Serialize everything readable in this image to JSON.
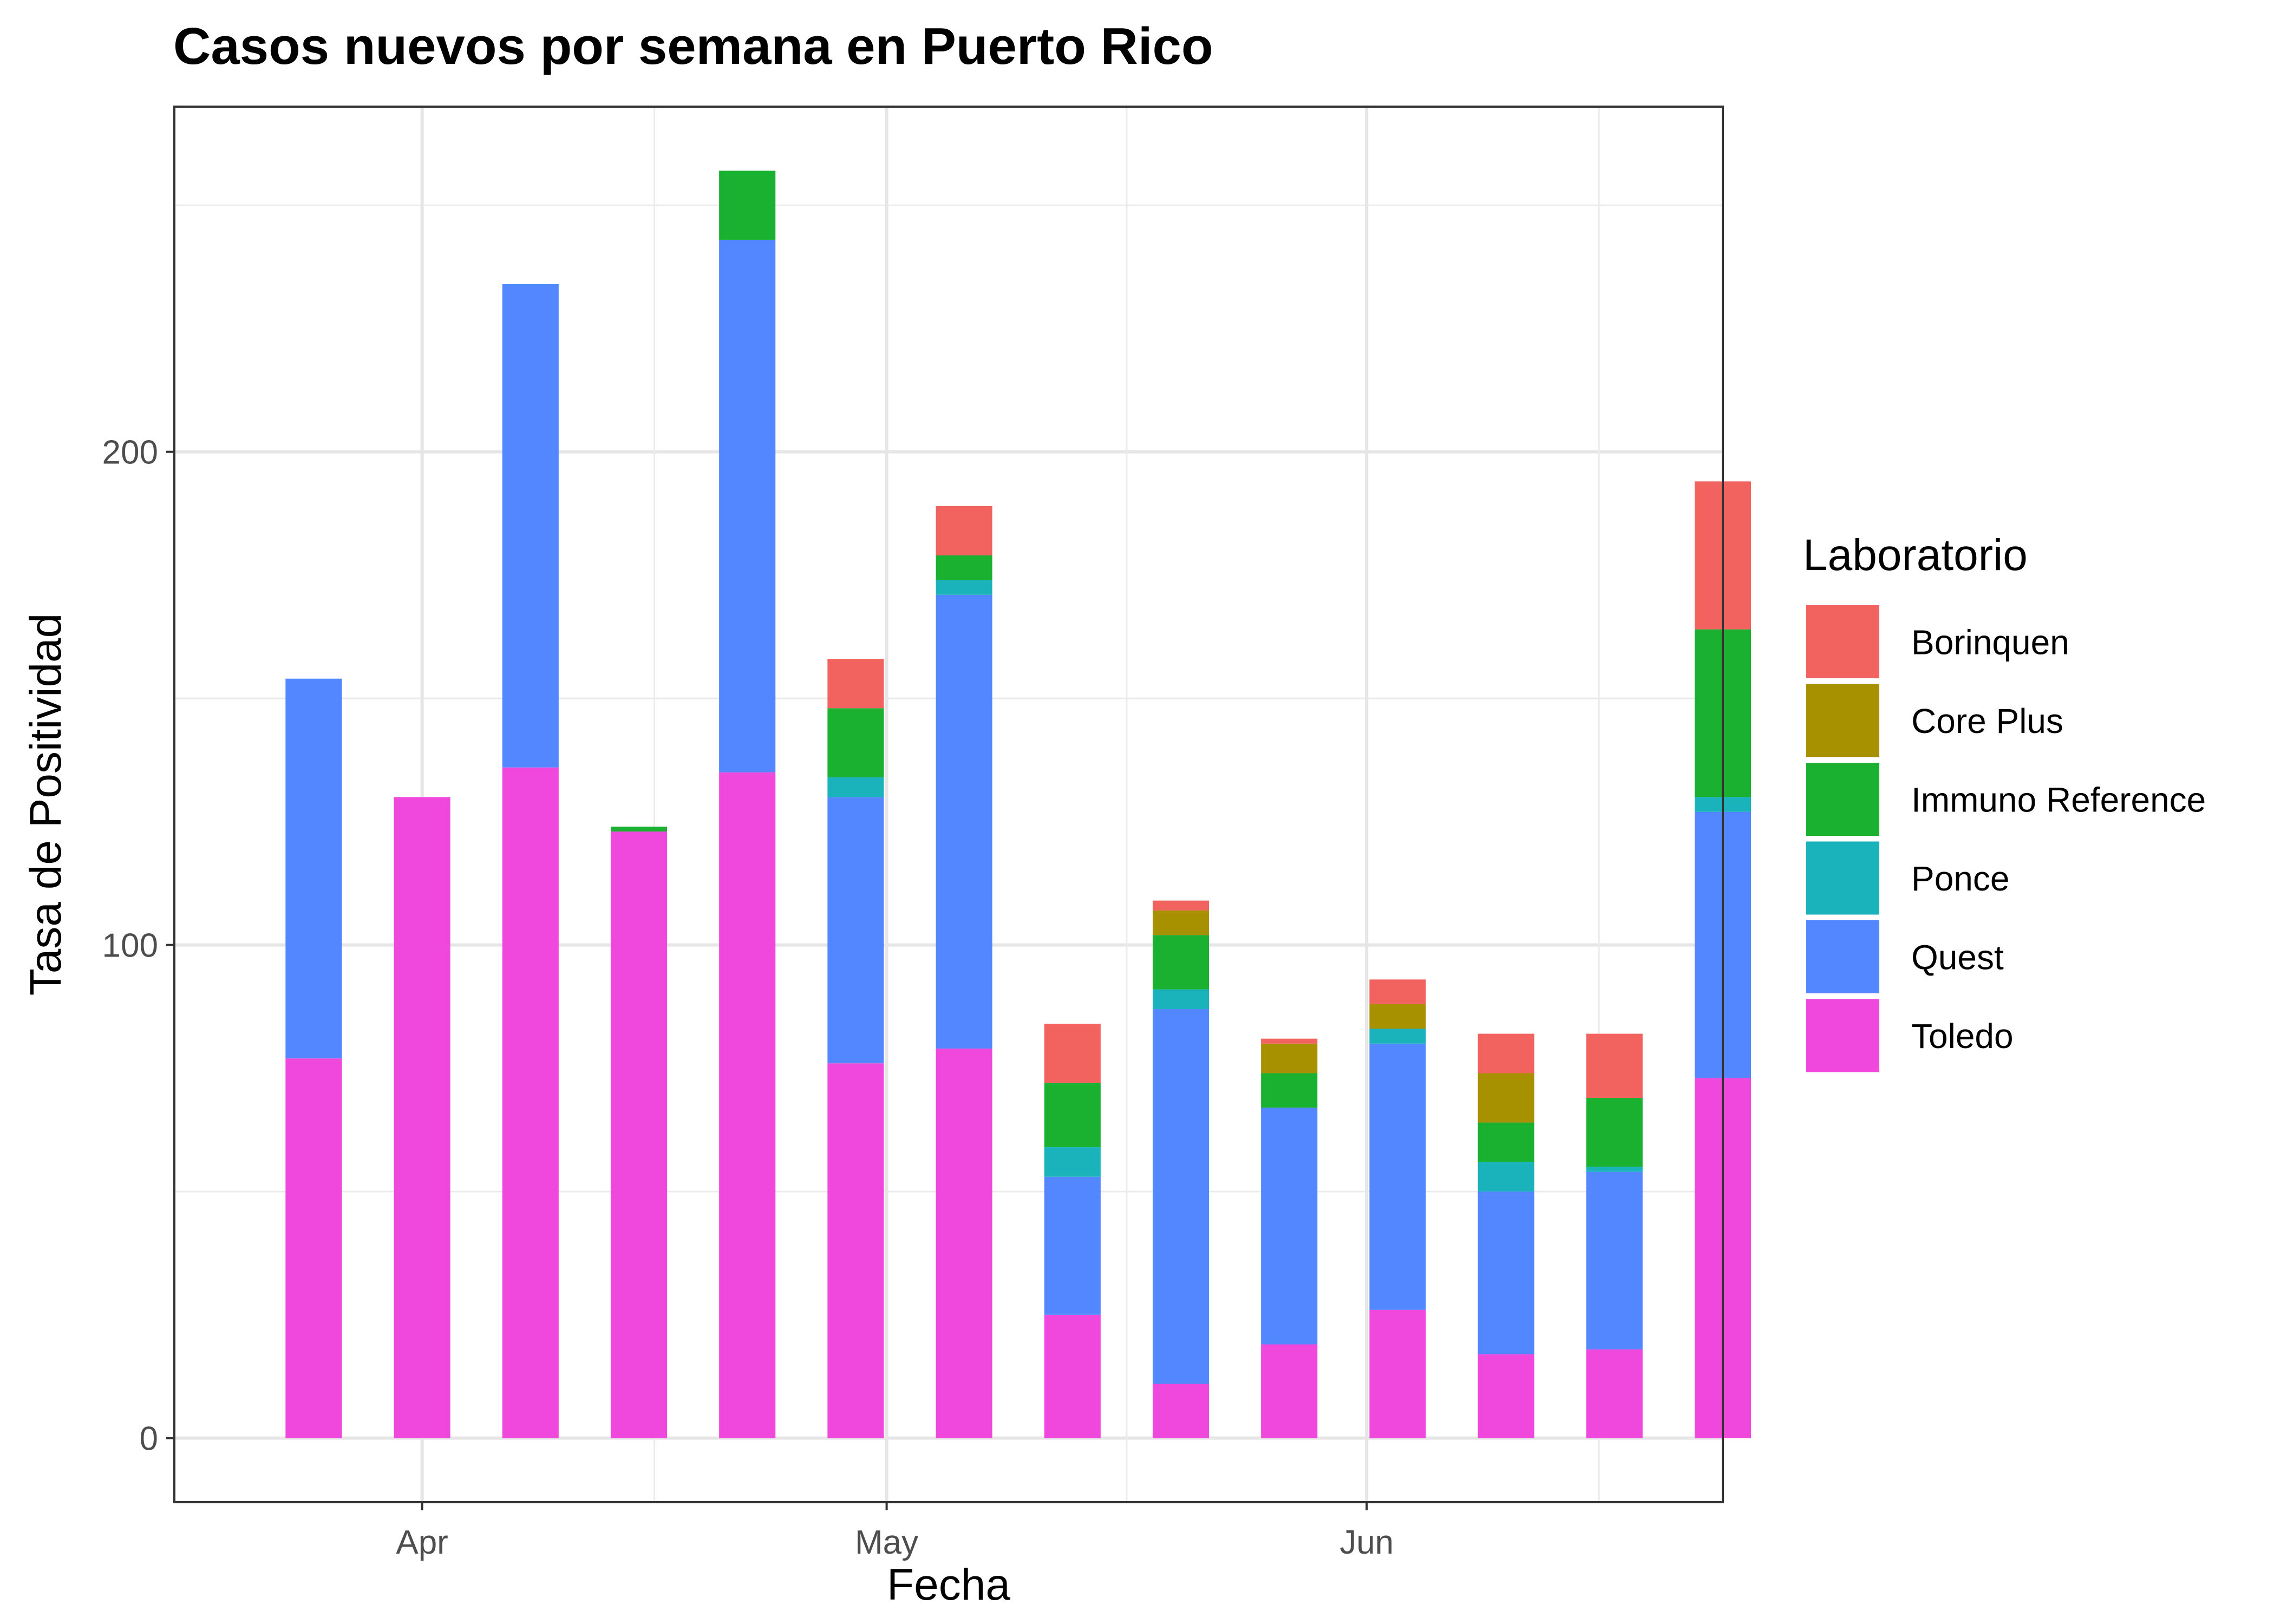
{
  "chart_data": {
    "type": "bar",
    "stacked": true,
    "title": "Casos nuevos por semana en Puerto Rico",
    "xlabel": "Fecha",
    "ylabel": "Tasa de Positividad",
    "x_ticks": [
      {
        "label": "Apr",
        "date": "2020-04-01"
      },
      {
        "label": "May",
        "date": "2020-05-01"
      },
      {
        "label": "Jun",
        "date": "2020-06-01"
      }
    ],
    "y_ticks": [
      0,
      100,
      200
    ],
    "ylim": [
      -13,
      270
    ],
    "grid": true,
    "legend_position": "right",
    "legend_title": "Laboratorio",
    "categories": [
      "2020-03-22",
      "2020-03-29",
      "2020-04-05",
      "2020-04-12",
      "2020-04-19",
      "2020-04-26",
      "2020-05-03",
      "2020-05-10",
      "2020-05-17",
      "2020-05-24",
      "2020-05-31",
      "2020-06-07",
      "2020-06-14",
      "2020-06-21"
    ],
    "series": [
      {
        "name": "Toledo",
        "color": "#F047DC",
        "values": [
          77,
          130,
          136,
          123,
          135,
          76,
          79,
          25,
          11,
          19,
          26,
          17,
          18,
          73
        ]
      },
      {
        "name": "Quest",
        "color": "#5287FF",
        "values": [
          77,
          0,
          98,
          0,
          108,
          54,
          92,
          28,
          76,
          48,
          54,
          33,
          36,
          54
        ]
      },
      {
        "name": "Ponce",
        "color": "#1BB3BB",
        "values": [
          0,
          0,
          0,
          0,
          0,
          4,
          3,
          6,
          4,
          0,
          3,
          6,
          1,
          3
        ]
      },
      {
        "name": "Immuno Reference",
        "color": "#19B12F",
        "values": [
          0,
          0,
          0,
          1,
          14,
          14,
          5,
          13,
          11,
          7,
          0,
          8,
          14,
          34
        ]
      },
      {
        "name": "Core Plus",
        "color": "#A89100",
        "values": [
          0,
          0,
          0,
          0,
          0,
          0,
          0,
          0,
          5,
          6,
          5,
          10,
          0,
          0
        ]
      },
      {
        "name": "Borinquen",
        "color": "#F2625E",
        "values": [
          0,
          0,
          0,
          0,
          0,
          10,
          10,
          12,
          2,
          1,
          5,
          8,
          13,
          30
        ]
      }
    ]
  }
}
